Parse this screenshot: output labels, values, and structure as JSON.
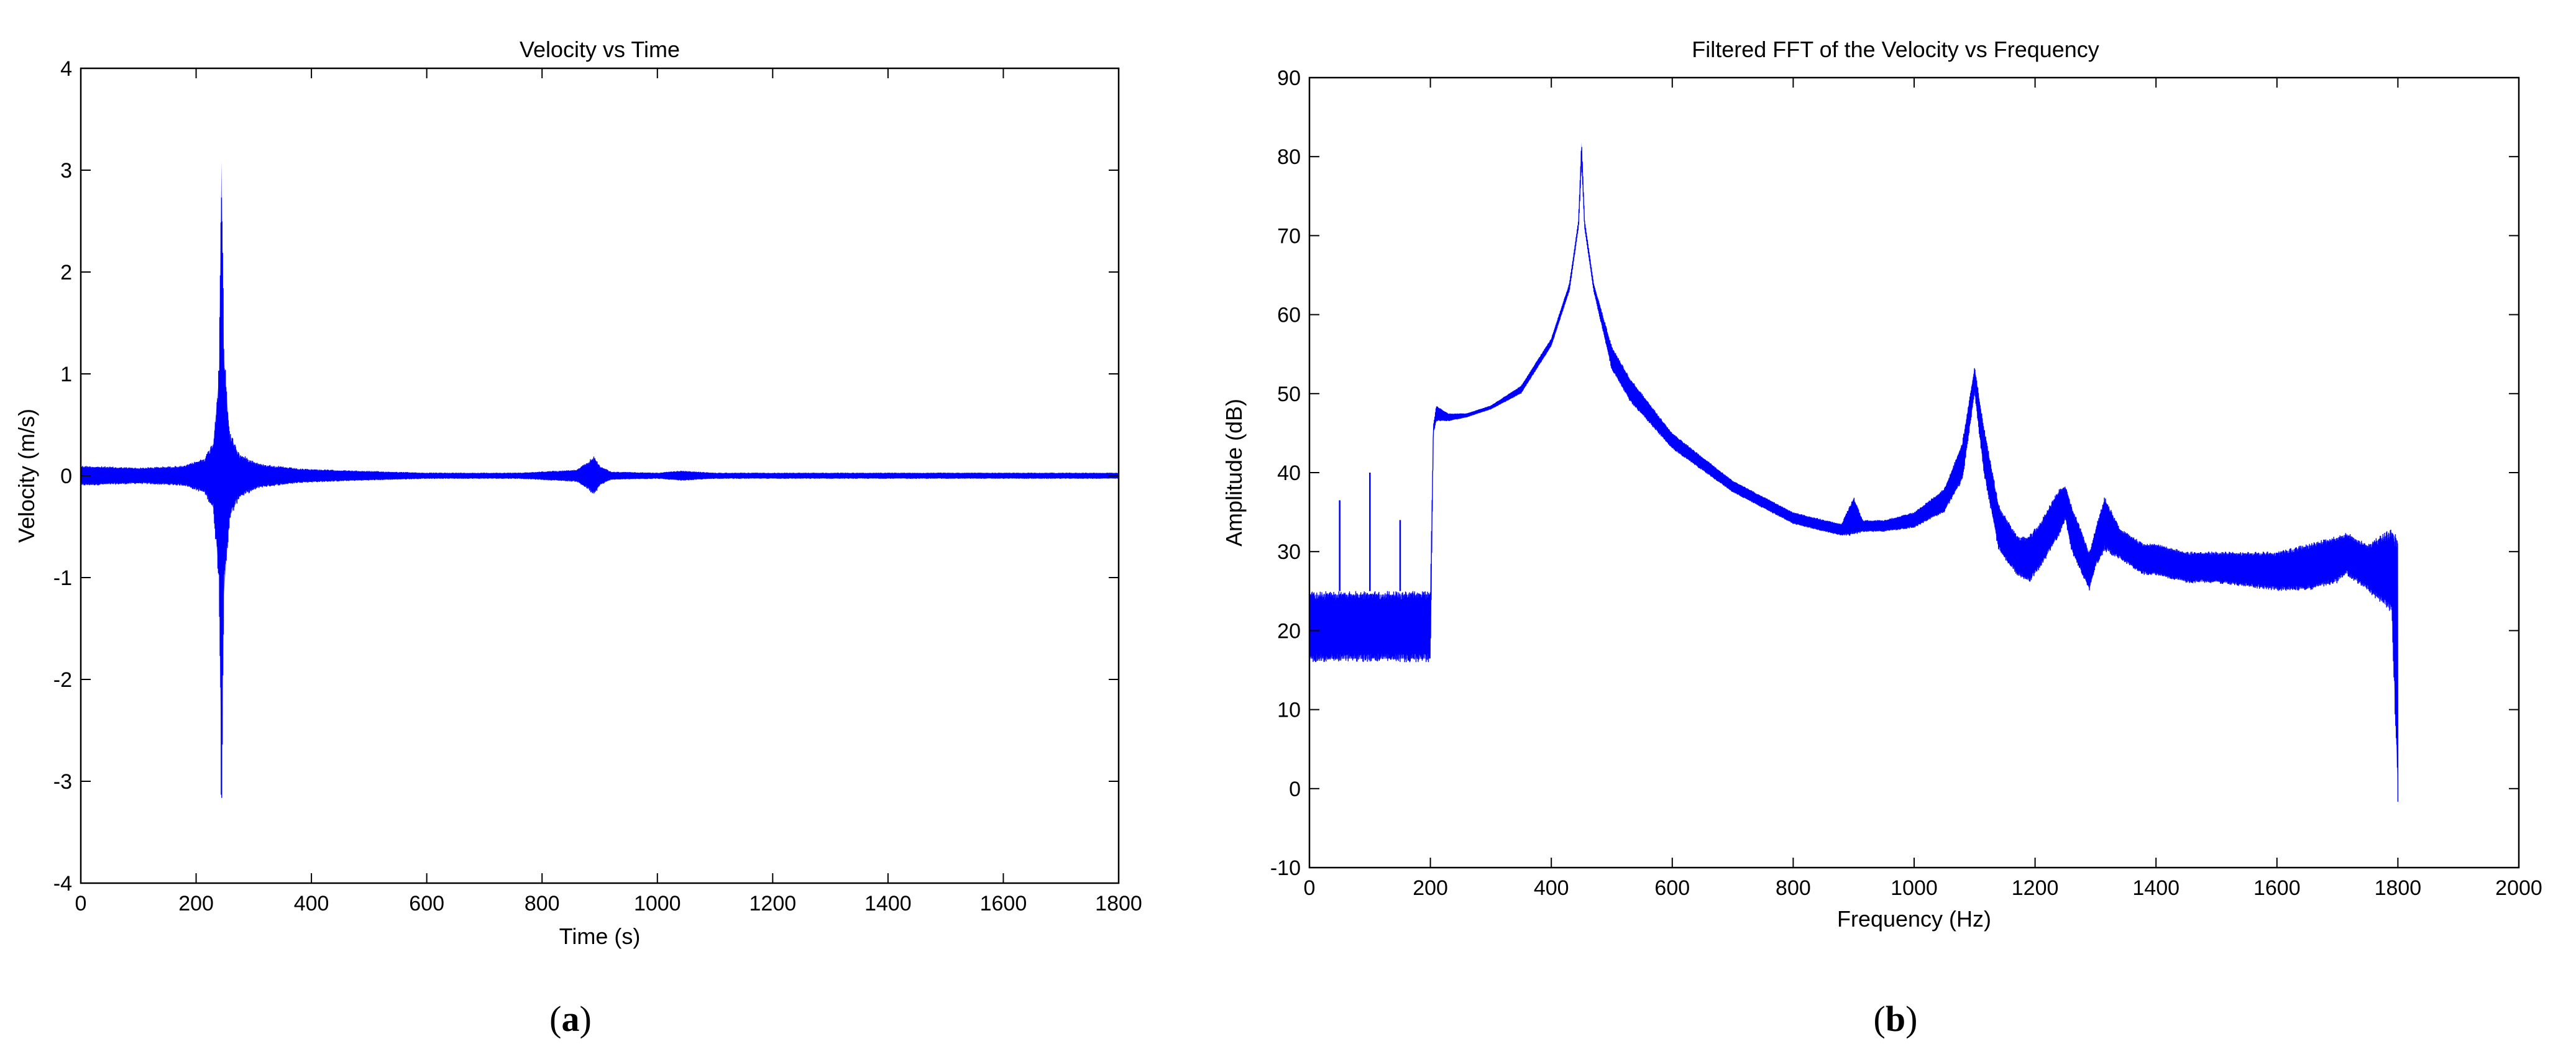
{
  "chart_data": [
    {
      "type": "line",
      "panel_label": "a",
      "title": "Velocity vs Time",
      "xlabel": "Time (s)",
      "ylabel": "Velocity (m/s)",
      "xlim": [
        0,
        1800
      ],
      "ylim": [
        -4,
        4
      ],
      "xticks": [
        0,
        200,
        400,
        600,
        800,
        1000,
        1200,
        1400,
        1600,
        1800
      ],
      "yticks": [
        -4,
        -3,
        -2,
        -1,
        0,
        1,
        2,
        3,
        4
      ],
      "grid": false,
      "color": "#0000ff",
      "series": [
        {
          "envelope": {
            "x": [
              0,
              100,
              180,
              215,
              230,
              240,
              244,
              248,
              258,
              275,
              310,
              380,
              480,
              600,
              760,
              860,
              880,
              890,
              900,
              920,
              1000,
              1040,
              1100,
              1300,
              1500,
              1700,
              1800
            ],
            "high": [
              0.1,
              0.08,
              0.1,
              0.18,
              0.35,
              1.1,
              3.43,
              1.3,
              0.45,
              0.22,
              0.12,
              0.07,
              0.05,
              0.03,
              0.03,
              0.06,
              0.14,
              0.2,
              0.1,
              0.04,
              0.03,
              0.05,
              0.03,
              0.03,
              0.03,
              0.03,
              0.03
            ],
            "low": [
              -0.1,
              -0.08,
              -0.1,
              -0.18,
              -0.35,
              -1.1,
              -3.43,
              -1.3,
              -0.45,
              -0.22,
              -0.12,
              -0.07,
              -0.05,
              -0.03,
              -0.03,
              -0.06,
              -0.14,
              -0.2,
              -0.1,
              -0.04,
              -0.03,
              -0.05,
              -0.03,
              -0.03,
              -0.03,
              -0.03,
              -0.03
            ]
          }
        }
      ]
    },
    {
      "type": "line",
      "panel_label": "b",
      "title": "Filtered FFT of the Velocity vs Frequency",
      "xlabel": "Frequency (Hz)",
      "ylabel": "Amplitude (dB)",
      "xlim": [
        0,
        2000
      ],
      "ylim": [
        -10,
        90
      ],
      "xticks": [
        0,
        200,
        400,
        600,
        800,
        1000,
        1200,
        1400,
        1600,
        1800,
        2000
      ],
      "yticks": [
        -10,
        0,
        10,
        20,
        30,
        40,
        50,
        60,
        70,
        80,
        90
      ],
      "grid": false,
      "color": "#0000ff",
      "series": [
        {
          "envelope": {
            "x": [
              0,
              50,
              100,
              150,
              200,
              205,
              210,
              230,
              260,
              300,
              350,
              400,
              430,
              445,
              450,
              455,
              470,
              500,
              530,
              600,
              700,
              800,
              880,
              900,
              915,
              950,
              1000,
              1050,
              1080,
              1100,
              1115,
              1140,
              1170,
              1190,
              1210,
              1240,
              1250,
              1260,
              1290,
              1300,
              1315,
              1340,
              1380,
              1400,
              1450,
              1500,
              1600,
              1650,
              1700,
              1715,
              1750,
              1790,
              1800
            ],
            "high": [
              25,
              25,
              25,
              25,
              25,
              46,
              48.5,
              47.5,
              47.5,
              48.5,
              51,
              57,
              64,
              72,
              82,
              72,
              64,
              56,
              52,
              45,
              39,
              35,
              33.5,
              37,
              34,
              34,
              35,
              38,
              44,
              53.5,
              46,
              36,
              32,
              32,
              34,
              38,
              38.5,
              36,
              30,
              33,
              37,
              33,
              31,
              31,
              30,
              30,
              30,
              31,
              32,
              32.5,
              31,
              33,
              33
            ],
            "low": [
              16,
              16,
              16,
              16,
              16,
              45,
              46.5,
              46.5,
              47,
              48,
              50,
              56,
              63,
              71,
              79,
              71,
              63,
              53,
              49,
              43,
              37.5,
              33.5,
              32,
              32,
              32.5,
              32.5,
              33,
              35,
              39,
              50,
              40,
              30,
              27,
              26,
              28,
              32,
              34,
              30,
              25,
              28,
              30,
              29,
              27,
              27,
              26,
              26,
              25,
              25,
              26,
              27,
              25,
              22,
              -2
            ]
          },
          "spikes": [
            {
              "x": 50,
              "y": 36.5
            },
            {
              "x": 100,
              "y": 40
            },
            {
              "x": 150,
              "y": 34
            }
          ]
        }
      ]
    }
  ]
}
